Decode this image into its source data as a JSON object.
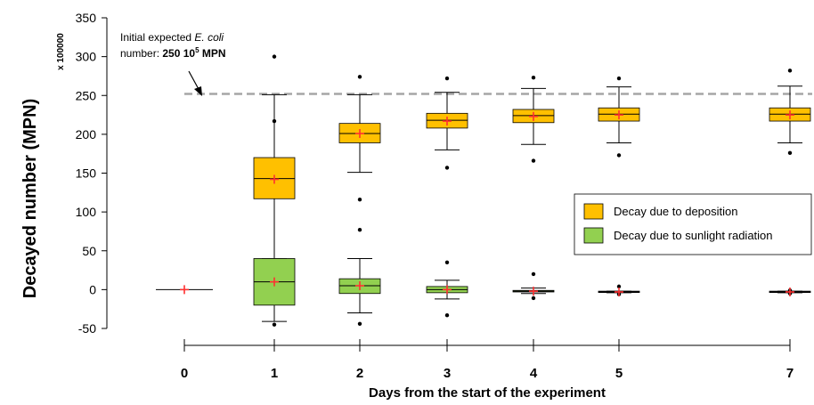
{
  "chart_data": {
    "type": "boxplot",
    "xlabel": "Days from the start of the experiment",
    "ylabel": "Decayed number (MPN)",
    "y_multiplier_label": "x 100000",
    "ylim": [
      -50,
      350
    ],
    "yticks": [
      -50,
      0,
      50,
      100,
      150,
      200,
      250,
      300,
      350
    ],
    "x": [
      0,
      1,
      2,
      3,
      4,
      5,
      7
    ],
    "reference_line": {
      "value": 252,
      "style": "dashed"
    },
    "annotation": {
      "line1_prefix": "Initial expected ",
      "line1_italic": "E. coli",
      "line2_prefix": "number: ",
      "line2_bold": "250 10",
      "line2_sup": "5",
      "line2_suffix": " MPN"
    },
    "legend": {
      "placement": "right"
    },
    "series": [
      {
        "name": "Decay due to deposition",
        "color": "#FFC000",
        "boxes": [
          {
            "x": 1,
            "whisker_low": 37,
            "q1": 117,
            "median": 143,
            "q3": 170,
            "whisker_high": 251,
            "mean": 142,
            "outliers": [
              217,
              300
            ]
          },
          {
            "x": 2,
            "whisker_low": 151,
            "q1": 189,
            "median": 201,
            "q3": 214,
            "whisker_high": 251,
            "mean": 201,
            "outliers": [
              116,
              77,
              274
            ]
          },
          {
            "x": 3,
            "whisker_low": 180,
            "q1": 208,
            "median": 218,
            "q3": 227,
            "whisker_high": 254,
            "mean": 217,
            "outliers": [
              157,
              272
            ]
          },
          {
            "x": 4,
            "whisker_low": 187,
            "q1": 215,
            "median": 224,
            "q3": 232,
            "whisker_high": 259,
            "mean": 223,
            "outliers": [
              166,
              273
            ]
          },
          {
            "x": 5,
            "whisker_low": 189,
            "q1": 217,
            "median": 226,
            "q3": 234,
            "whisker_high": 261,
            "mean": 225,
            "outliers": [
              173,
              272
            ]
          },
          {
            "x": 7,
            "whisker_low": 189,
            "q1": 217,
            "median": 226,
            "q3": 234,
            "whisker_high": 262,
            "mean": 225,
            "outliers": [
              176,
              282
            ]
          }
        ]
      },
      {
        "name": "Decay due to sunlight radiation",
        "color": "#92D050",
        "boxes": [
          {
            "x": 0,
            "whisker_low": 0,
            "q1": 0,
            "median": 0,
            "q3": 0,
            "whisker_high": 0,
            "mean": 0,
            "outliers": []
          },
          {
            "x": 1,
            "whisker_low": -41,
            "q1": -20,
            "median": 10,
            "q3": 40,
            "whisker_high": 40,
            "mean": 10,
            "outliers": [
              -45
            ]
          },
          {
            "x": 2,
            "whisker_low": -30,
            "q1": -5,
            "median": 5,
            "q3": 14,
            "whisker_high": 40,
            "mean": 5,
            "outliers": [
              -44
            ]
          },
          {
            "x": 3,
            "whisker_low": -12,
            "q1": -4,
            "median": 0,
            "q3": 4,
            "whisker_high": 12,
            "mean": 0,
            "outliers": [
              35,
              -33
            ]
          },
          {
            "x": 4,
            "whisker_low": -5,
            "q1": -3,
            "median": -2,
            "q3": -1,
            "whisker_high": 2,
            "mean": -2,
            "outliers": [
              20,
              -11
            ]
          },
          {
            "x": 5,
            "whisker_low": -4,
            "q1": -3,
            "median": -3,
            "q3": -2,
            "whisker_high": -2,
            "mean": -3,
            "outliers": [
              4,
              -6
            ]
          },
          {
            "x": 7,
            "whisker_low": -4,
            "q1": -3,
            "median": -3,
            "q3": -2,
            "whisker_high": -2,
            "mean": -3,
            "outliers": [
              -5,
              -1
            ]
          }
        ]
      }
    ]
  }
}
